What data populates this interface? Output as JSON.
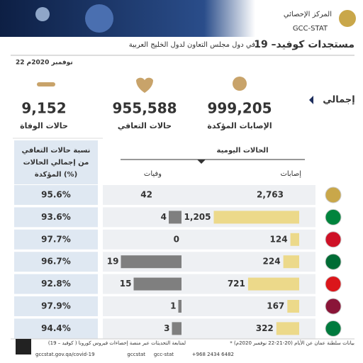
{
  "header": {
    "org_ar": "المركز الإحصائي",
    "org_en": "GCC-STAT",
    "title": "مستجدات كوفيد– 19",
    "subtitle": "في دول مجلس التعاون لدول الخليج العربية",
    "date": "22 نوفمبر 2020م"
  },
  "totals": {
    "label": "إجمالي",
    "items": [
      {
        "value": "999,205",
        "label": "الإصابات المؤكدة"
      },
      {
        "value": "955,588",
        "label": "حالات التعافي"
      },
      {
        "value": "9,152",
        "label": "حالات الوفاة"
      }
    ]
  },
  "table": {
    "daily_header": "الحالات اليومية",
    "cases_header": "إصابات",
    "deaths_header": "وفيات",
    "recovery_header": [
      "نسبة حالات التعافي",
      "من إجمالي الحالات",
      "المؤكدة (%)"
    ],
    "rows": [
      {
        "flag": "gcc",
        "cases": 2763,
        "cases_label": "2,763",
        "deaths": 42,
        "recovery": 95.6,
        "recovery_label": "95.6%"
      },
      {
        "flag": "uae",
        "cases": 1205,
        "cases_label": "1,205",
        "deaths": 4,
        "recovery": 93.6,
        "recovery_label": "93.6%"
      },
      {
        "flag": "bahrain",
        "cases": 124,
        "cases_label": "124",
        "deaths": 0,
        "recovery": 97.7,
        "recovery_label": "97.7%"
      },
      {
        "flag": "saudi",
        "cases": 224,
        "cases_label": "224",
        "deaths": 19,
        "recovery": 96.7,
        "recovery_label": "96.7%"
      },
      {
        "flag": "oman",
        "cases": 721,
        "cases_label": "721",
        "deaths": 15,
        "recovery": 92.8,
        "recovery_label": "92.8%"
      },
      {
        "flag": "qatar",
        "cases": 167,
        "cases_label": "167",
        "deaths": 1,
        "recovery": 97.9,
        "recovery_label": "97.9%"
      },
      {
        "flag": "kuwait",
        "cases": 322,
        "cases_label": "322",
        "deaths": 3,
        "recovery": 94.4,
        "recovery_label": "94.4%"
      }
    ]
  },
  "footer": {
    "note": "* بيانات سلطنة عمان عن الأيام (20-21-22 نوفمبر 2020م)",
    "follow": "لمتابعة التحديثات عبر منصة إحصاءات فيروس كورونا ( كوفيد – 19)",
    "url": "gccstat.gov.qa/covid-19",
    "social": "gccstat",
    "phone": "+968 2434 6482",
    "social2": "gcc-stat"
  }
}
